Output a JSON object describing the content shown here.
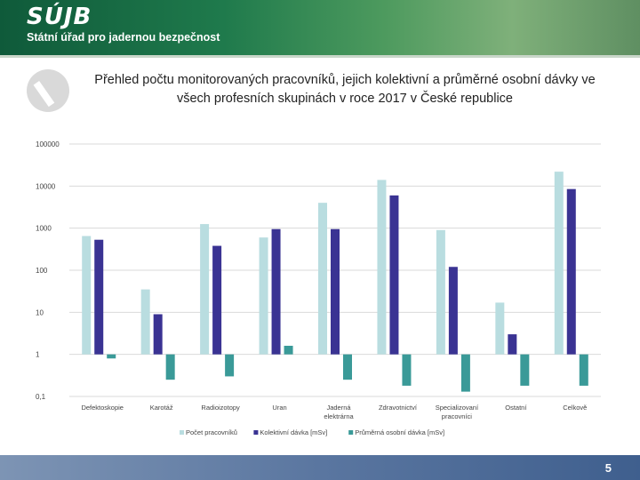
{
  "header": {
    "logo_text": "SÚJB",
    "office_name": "Státní úřad pro jadernou bezpečnost"
  },
  "slide": {
    "title": "Přehled počtu monitorovaných pracovníků, jejich kolektivní a průměrné osobní dávky ve všech profesních skupinách v roce 2017 v České republice",
    "page_number": "5"
  },
  "colors": {
    "series_1": "#b9dde0",
    "series_2": "#3a3393",
    "series_3": "#3a9a98"
  },
  "chart_data": {
    "type": "bar",
    "title": "Přehled počtu monitorovaných pracovníků, jejich kolektivní a průměrné osobní dávky ve všech profesních skupinách v roce 2017 v České republice",
    "y_scale": "log",
    "ylim": [
      0.1,
      100000
    ],
    "y_ticks": [
      "0,1",
      "1",
      "10",
      "100",
      "1000",
      "10000",
      "100000"
    ],
    "y_tick_values": [
      0.1,
      1,
      10,
      100,
      1000,
      10000,
      100000
    ],
    "grid": true,
    "legend": "bottom",
    "categories": [
      "Defektoskopie",
      "Karotáž",
      "Radioizotopy",
      "Uran",
      "Jaderná elektrárna",
      "Zdravotnictví",
      "Specializovaní pracovníci",
      "Ostatní",
      "Celkově"
    ],
    "series": [
      {
        "name": "Počet pracovníků",
        "values": [
          650,
          35,
          1250,
          600,
          4000,
          14000,
          900,
          17,
          22000
        ]
      },
      {
        "name": "Kolektivní dávka [mSv]",
        "values": [
          530,
          9,
          380,
          950,
          950,
          6000,
          120,
          3,
          8500
        ]
      },
      {
        "name": "Průměrná osobní dávka [mSv]",
        "values": [
          0.8,
          0.25,
          0.3,
          1.6,
          0.25,
          0.18,
          0.13,
          0.18,
          0.18
        ]
      }
    ]
  }
}
